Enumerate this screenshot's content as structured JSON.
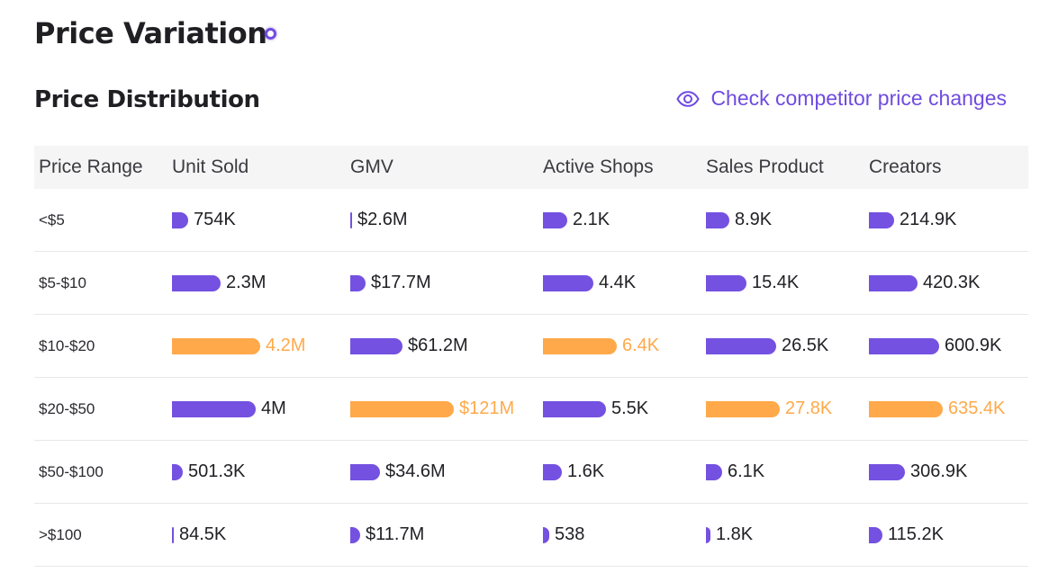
{
  "header": {
    "title": "Price Variation"
  },
  "section": {
    "title": "Price Distribution",
    "link_label": "Check competitor price changes"
  },
  "colors": {
    "bar": "#7451e0",
    "highlight": "#ffa94a",
    "accent": "#6f4be0"
  },
  "table": {
    "columns": [
      "Price Range",
      "Unit Sold",
      "GMV",
      "Active Shops",
      "Sales Product",
      "Creators"
    ],
    "rows": [
      {
        "range": "<$5",
        "cells": [
          {
            "label": "754K",
            "value": 754000,
            "hl": false
          },
          {
            "label": "$2.6M",
            "value": 2600000,
            "hl": false
          },
          {
            "label": "2.1K",
            "value": 2100,
            "hl": false
          },
          {
            "label": "8.9K",
            "value": 8900,
            "hl": false
          },
          {
            "label": "214.9K",
            "value": 214900,
            "hl": false
          }
        ]
      },
      {
        "range": "$5-$10",
        "cells": [
          {
            "label": "2.3M",
            "value": 2300000,
            "hl": false
          },
          {
            "label": "$17.7M",
            "value": 17700000,
            "hl": false
          },
          {
            "label": "4.4K",
            "value": 4400,
            "hl": false
          },
          {
            "label": "15.4K",
            "value": 15400,
            "hl": false
          },
          {
            "label": "420.3K",
            "value": 420300,
            "hl": false
          }
        ]
      },
      {
        "range": "$10-$20",
        "cells": [
          {
            "label": "4.2M",
            "value": 4200000,
            "hl": true
          },
          {
            "label": "$61.2M",
            "value": 61200000,
            "hl": false
          },
          {
            "label": "6.4K",
            "value": 6400,
            "hl": true
          },
          {
            "label": "26.5K",
            "value": 26500,
            "hl": false
          },
          {
            "label": "600.9K",
            "value": 600900,
            "hl": false
          }
        ]
      },
      {
        "range": "$20-$50",
        "cells": [
          {
            "label": "4M",
            "value": 4000000,
            "hl": false
          },
          {
            "label": "$121M",
            "value": 121000000,
            "hl": true
          },
          {
            "label": "5.5K",
            "value": 5500,
            "hl": false
          },
          {
            "label": "27.8K",
            "value": 27800,
            "hl": true
          },
          {
            "label": "635.4K",
            "value": 635400,
            "hl": true
          }
        ]
      },
      {
        "range": "$50-$100",
        "cells": [
          {
            "label": "501.3K",
            "value": 501300,
            "hl": false
          },
          {
            "label": "$34.6M",
            "value": 34600000,
            "hl": false
          },
          {
            "label": "1.6K",
            "value": 1600,
            "hl": false
          },
          {
            "label": "6.1K",
            "value": 6100,
            "hl": false
          },
          {
            "label": "306.9K",
            "value": 306900,
            "hl": false
          }
        ]
      },
      {
        "range": ">$100",
        "cells": [
          {
            "label": "84.5K",
            "value": 84500,
            "hl": false
          },
          {
            "label": "$11.7M",
            "value": 11700000,
            "hl": false
          },
          {
            "label": "538",
            "value": 538,
            "hl": false
          },
          {
            "label": "1.8K",
            "value": 1800,
            "hl": false
          },
          {
            "label": "115.2K",
            "value": 115200,
            "hl": false
          }
        ]
      }
    ]
  }
}
